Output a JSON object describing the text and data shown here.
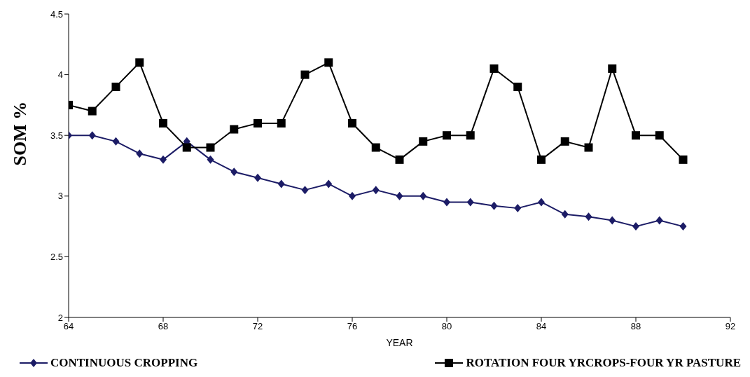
{
  "chart_data": {
    "type": "line",
    "xlabel": "YEAR",
    "ylabel": "SOM %",
    "x": [
      64,
      65,
      66,
      67,
      68,
      69,
      70,
      71,
      72,
      73,
      74,
      75,
      76,
      77,
      78,
      79,
      80,
      81,
      82,
      83,
      84,
      85,
      86,
      87,
      88,
      89,
      90
    ],
    "series": [
      {
        "name": "CONTINUOUS CROPPING",
        "color": "#1c1c66",
        "marker": "diamond",
        "values": [
          3.5,
          3.5,
          3.45,
          3.35,
          3.3,
          3.45,
          3.3,
          3.2,
          3.15,
          3.1,
          3.05,
          3.1,
          3.0,
          3.05,
          3.0,
          3.0,
          2.95,
          2.95,
          2.92,
          2.9,
          2.95,
          2.85,
          2.83,
          2.8,
          2.75,
          2.8,
          2.75
        ]
      },
      {
        "name": "ROTATION FOUR YRCROPS-FOUR YR PASTURE",
        "color": "#000000",
        "marker": "square",
        "values": [
          3.75,
          3.7,
          3.9,
          4.1,
          3.6,
          3.4,
          3.4,
          3.55,
          3.6,
          3.6,
          4.0,
          4.1,
          3.6,
          3.4,
          3.3,
          3.45,
          3.5,
          3.5,
          4.05,
          3.9,
          3.3,
          3.45,
          3.4,
          4.05,
          3.5,
          3.5,
          3.3
        ]
      }
    ],
    "xlim": [
      64,
      92
    ],
    "xticks": [
      64,
      68,
      72,
      76,
      80,
      84,
      88,
      92
    ],
    "ylim": [
      2,
      4.5
    ],
    "yticks": [
      2,
      2.5,
      3,
      3.5,
      4,
      4.5
    ],
    "grid": false,
    "legend": "bottom",
    "line_style": "solid"
  }
}
